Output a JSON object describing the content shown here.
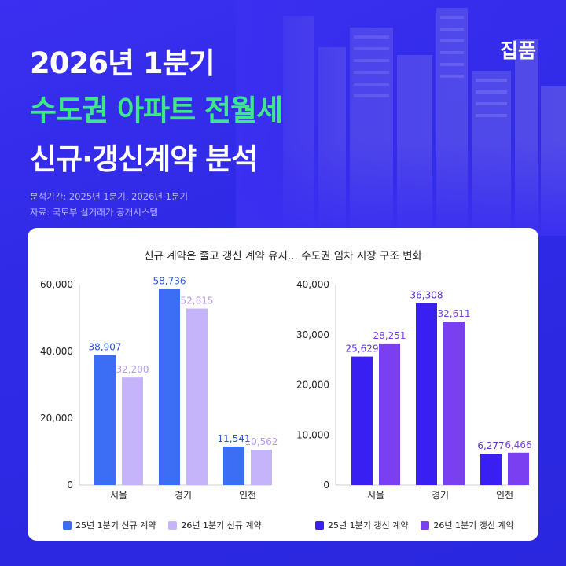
{
  "brand": "집품",
  "headline": {
    "line1": "2026년 1분기",
    "line2": "수도권 아파트 전월세",
    "line3": "신규·갱신계약 분석"
  },
  "meta": {
    "period": "분석기간: 2025년 1분기, 2026년 1분기",
    "source": "자료: 국토부 실거래가 공개시스템"
  },
  "card_title": "신규 계약은 줄고 갱신 계약 유지... 수도권 임차 시장 구조 변화",
  "colors": {
    "bg": "#3b2ff0",
    "headline_accent": "#3ee88a",
    "new_25": "#3b6ef5",
    "new_26": "#c6b4fb",
    "renew_25": "#3a1ff2",
    "renew_26": "#7b3ff2"
  },
  "chart_data": [
    {
      "type": "bar",
      "categories": [
        "서울",
        "경기",
        "인천"
      ],
      "series": [
        {
          "name": "25년 1분기 신규 계약",
          "values": [
            38907,
            58736,
            11541
          ],
          "value_labels": [
            "38,907",
            "58,736",
            "11,541"
          ],
          "color": "#3b6ef5"
        },
        {
          "name": "26년 1분기 신규 계약",
          "values": [
            32200,
            52815,
            10562
          ],
          "value_labels": [
            "32,200",
            "52,815",
            "10,562"
          ],
          "color": "#c6b4fb"
        }
      ],
      "ylim": [
        0,
        60000
      ],
      "yticks": [
        "0",
        "20,000",
        "40,000",
        "60,000"
      ],
      "ytick_values": [
        0,
        20000,
        40000,
        60000
      ],
      "label_color": "#2b55d9",
      "legend_position": "bottom"
    },
    {
      "type": "bar",
      "categories": [
        "서울",
        "경기",
        "인천"
      ],
      "series": [
        {
          "name": "25년 1분기 갱신 계약",
          "values": [
            25629,
            36308,
            6277
          ],
          "value_labels": [
            "25,629",
            "36,308",
            "6,277"
          ],
          "color": "#3a1ff2"
        },
        {
          "name": "26년 1분기 갱신 계약",
          "values": [
            28251,
            32611,
            6466
          ],
          "value_labels": [
            "28,251",
            "32,611",
            "6,466"
          ],
          "color": "#7b3ff2"
        }
      ],
      "ylim": [
        0,
        40000
      ],
      "yticks": [
        "0",
        "10,000",
        "20,000",
        "30,000",
        "40,000"
      ],
      "ytick_values": [
        0,
        10000,
        20000,
        30000,
        40000
      ],
      "label_color": "#5a2fd9",
      "legend_position": "bottom"
    }
  ]
}
